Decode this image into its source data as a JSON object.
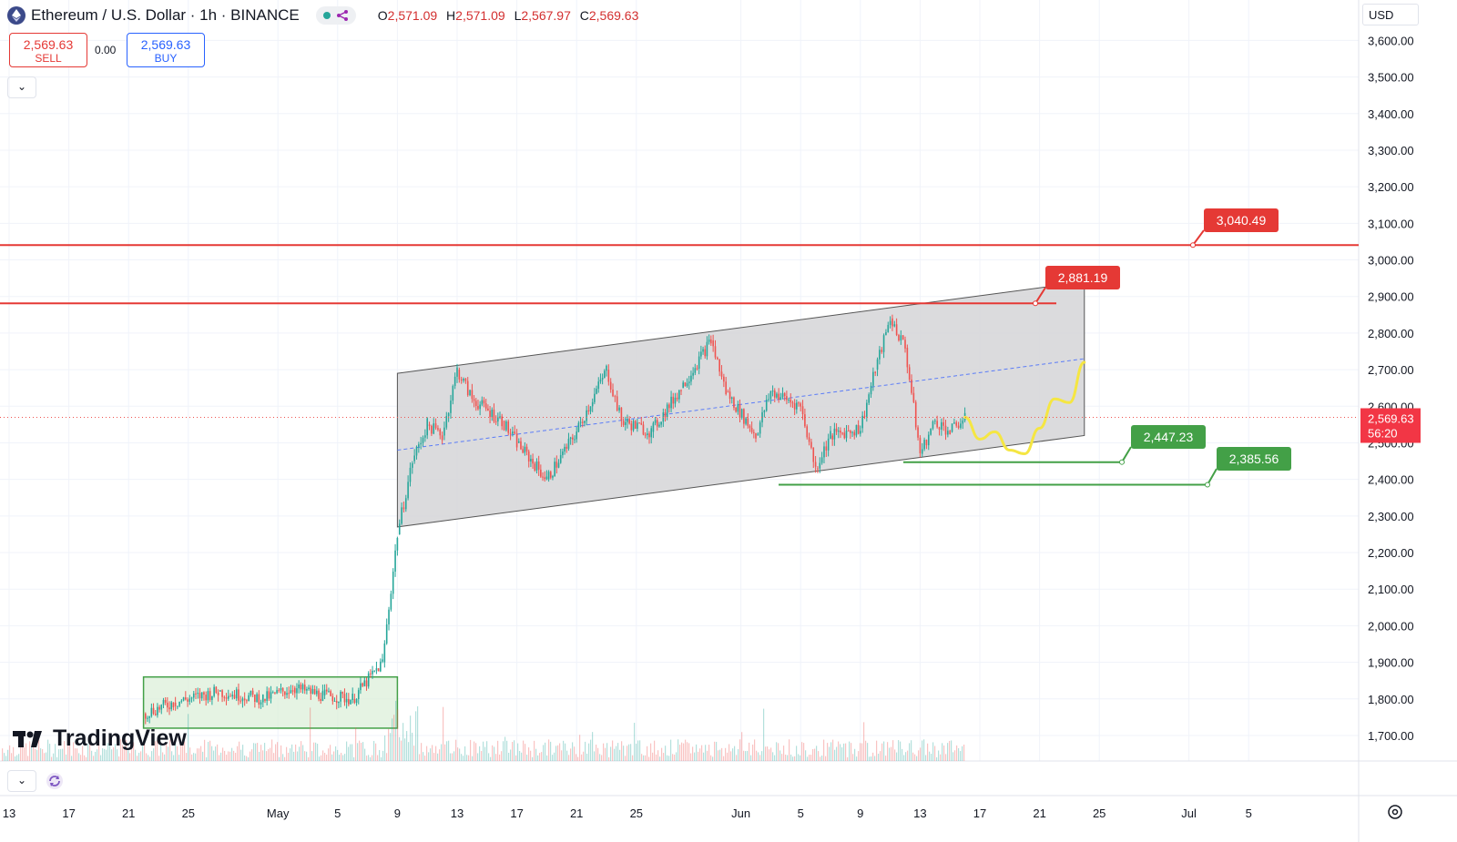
{
  "header": {
    "symbol_title": "Ethereum / U.S. Dollar · 1h · BINANCE",
    "ohlc": [
      {
        "k": "O",
        "v": "2,571.09"
      },
      {
        "k": "H",
        "v": "2,571.09"
      },
      {
        "k": "L",
        "v": "2,567.97"
      },
      {
        "k": "C",
        "v": "2,569.63"
      }
    ]
  },
  "trade": {
    "sell_price": "2,569.63",
    "sell_label": "SELL",
    "spread": "0.00",
    "buy_price": "2,569.63",
    "buy_label": "BUY"
  },
  "currency_label": "USD",
  "branding": "TradingView",
  "colors": {
    "resistance": "#e53935",
    "support": "#43a047",
    "channel_fill": "#d7d7d9",
    "projection": "#f5e642",
    "midline": "#5b7cf7",
    "up_candle": "#26a69a",
    "down_candle": "#ef5350"
  },
  "chart_data": {
    "type": "candlestick",
    "title": "Ethereum / U.S. Dollar · 1h · BINANCE",
    "ylim": [
      1650,
      3650
    ],
    "y_ticks": [
      "3,600.00",
      "3,500.00",
      "3,400.00",
      "3,300.00",
      "3,200.00",
      "3,100.00",
      "3,000.00",
      "2,900.00",
      "2,800.00",
      "2,700.00",
      "2,600.00",
      "2,500.00",
      "2,400.00",
      "2,300.00",
      "2,200.00",
      "2,100.00",
      "2,000.00",
      "1,900.00",
      "1,800.00",
      "1,700.00"
    ],
    "x_ticks": [
      "13",
      "17",
      "21",
      "25",
      "May",
      "5",
      "9",
      "13",
      "17",
      "21",
      "25",
      "Jun",
      "5",
      "9",
      "13",
      "17",
      "21",
      "25",
      "Jul",
      "5"
    ],
    "x_tick_dates": [
      "2025-04-13",
      "2025-04-17",
      "2025-04-21",
      "2025-04-25",
      "2025-05-01",
      "2025-05-05",
      "2025-05-09",
      "2025-05-13",
      "2025-05-17",
      "2025-05-21",
      "2025-05-25",
      "2025-06-01",
      "2025-06-05",
      "2025-06-09",
      "2025-06-13",
      "2025-06-17",
      "2025-06-21",
      "2025-06-25",
      "2025-07-01",
      "2025-07-05"
    ],
    "last_price": "2,569.63",
    "countdown": "56:20",
    "price_path": [
      {
        "date": "2025-04-22",
        "price": 1760
      },
      {
        "date": "2025-04-24",
        "price": 1790
      },
      {
        "date": "2025-04-27",
        "price": 1820
      },
      {
        "date": "2025-04-30",
        "price": 1800
      },
      {
        "date": "2025-05-02",
        "price": 1830
      },
      {
        "date": "2025-05-04",
        "price": 1810
      },
      {
        "date": "2025-05-06",
        "price": 1800
      },
      {
        "date": "2025-05-08",
        "price": 1900
      },
      {
        "date": "2025-05-09",
        "price": 2250
      },
      {
        "date": "2025-05-10",
        "price": 2450
      },
      {
        "date": "2025-05-11",
        "price": 2550
      },
      {
        "date": "2025-05-12",
        "price": 2520
      },
      {
        "date": "2025-05-13",
        "price": 2700
      },
      {
        "date": "2025-05-14",
        "price": 2620
      },
      {
        "date": "2025-05-16",
        "price": 2560
      },
      {
        "date": "2025-05-17",
        "price": 2500
      },
      {
        "date": "2025-05-19",
        "price": 2400
      },
      {
        "date": "2025-05-21",
        "price": 2530
      },
      {
        "date": "2025-05-23",
        "price": 2700
      },
      {
        "date": "2025-05-24",
        "price": 2560
      },
      {
        "date": "2025-05-26",
        "price": 2530
      },
      {
        "date": "2025-05-28",
        "price": 2650
      },
      {
        "date": "2025-05-30",
        "price": 2780
      },
      {
        "date": "2025-05-31",
        "price": 2640
      },
      {
        "date": "2025-06-02",
        "price": 2520
      },
      {
        "date": "2025-06-03",
        "price": 2640
      },
      {
        "date": "2025-06-05",
        "price": 2600
      },
      {
        "date": "2025-06-06",
        "price": 2430
      },
      {
        "date": "2025-06-07",
        "price": 2520
      },
      {
        "date": "2025-06-09",
        "price": 2540
      },
      {
        "date": "2025-06-10",
        "price": 2700
      },
      {
        "date": "2025-06-11",
        "price": 2840
      },
      {
        "date": "2025-06-12",
        "price": 2760
      },
      {
        "date": "2025-06-13",
        "price": 2470
      },
      {
        "date": "2025-06-14",
        "price": 2560
      },
      {
        "date": "2025-06-15",
        "price": 2530
      },
      {
        "date": "2025-06-16",
        "price": 2570
      }
    ],
    "levels": [
      {
        "label": "3,040.49",
        "price": 3040.49,
        "kind": "resistance"
      },
      {
        "label": "2,881.19",
        "price": 2881.19,
        "kind": "resistance"
      },
      {
        "label": "2,447.23",
        "price": 2447.23,
        "kind": "support"
      },
      {
        "label": "2,385.56",
        "price": 2385.56,
        "kind": "support"
      }
    ],
    "channel": {
      "start_date": "2025-05-09",
      "end_date": "2025-06-24",
      "upper": [
        2690,
        2940
      ],
      "lower": [
        2270,
        2520
      ]
    },
    "consolidation_box": {
      "start_date": "2025-04-22",
      "end_date": "2025-05-09",
      "low": 1720,
      "high": 1860
    },
    "projection_path": [
      {
        "date": "2025-06-16",
        "price": 2570
      },
      {
        "date": "2025-06-17",
        "price": 2510
      },
      {
        "date": "2025-06-18",
        "price": 2530
      },
      {
        "date": "2025-06-19",
        "price": 2480
      },
      {
        "date": "2025-06-20",
        "price": 2470
      },
      {
        "date": "2025-06-21",
        "price": 2540
      },
      {
        "date": "2025-06-22",
        "price": 2620
      },
      {
        "date": "2025-06-23",
        "price": 2610
      },
      {
        "date": "2025-06-24",
        "price": 2720
      }
    ]
  }
}
